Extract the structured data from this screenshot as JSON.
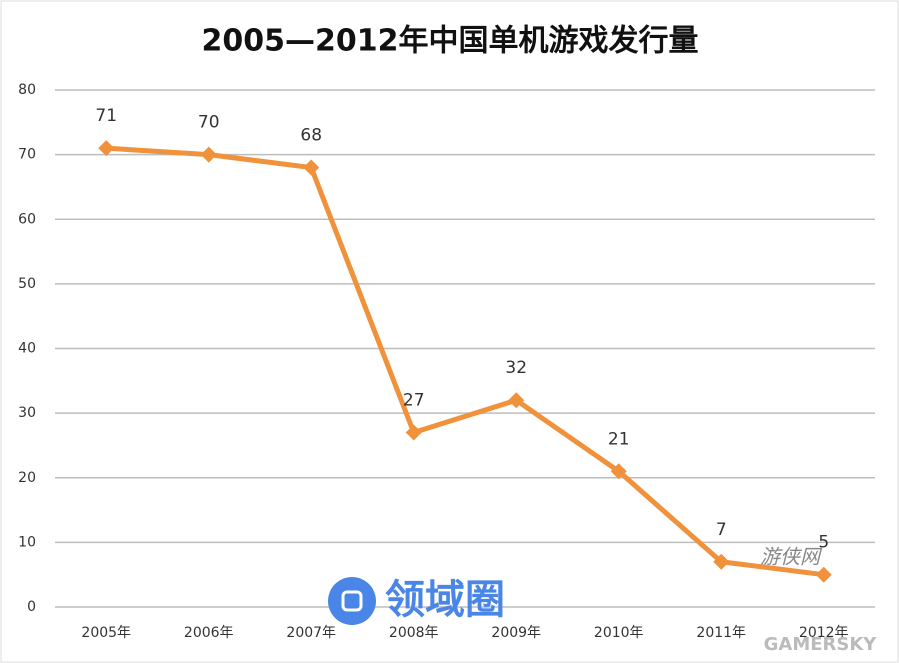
{
  "chart_data": {
    "type": "line",
    "title": "2005—2012年中国单机游戏发行量",
    "categories": [
      "2005年",
      "2006年",
      "2007年",
      "2008年",
      "2009年",
      "2010年",
      "2011年",
      "2012年"
    ],
    "values": [
      71,
      70,
      68,
      27,
      32,
      21,
      7,
      5
    ],
    "color": "#f0913c",
    "ylim": [
      0,
      80
    ],
    "yticks": [
      0,
      10,
      20,
      30,
      40,
      50,
      60,
      70,
      80
    ],
    "grid": true,
    "watermarks": [
      "领域圈",
      "游侠网",
      "GAMERSKY"
    ]
  }
}
